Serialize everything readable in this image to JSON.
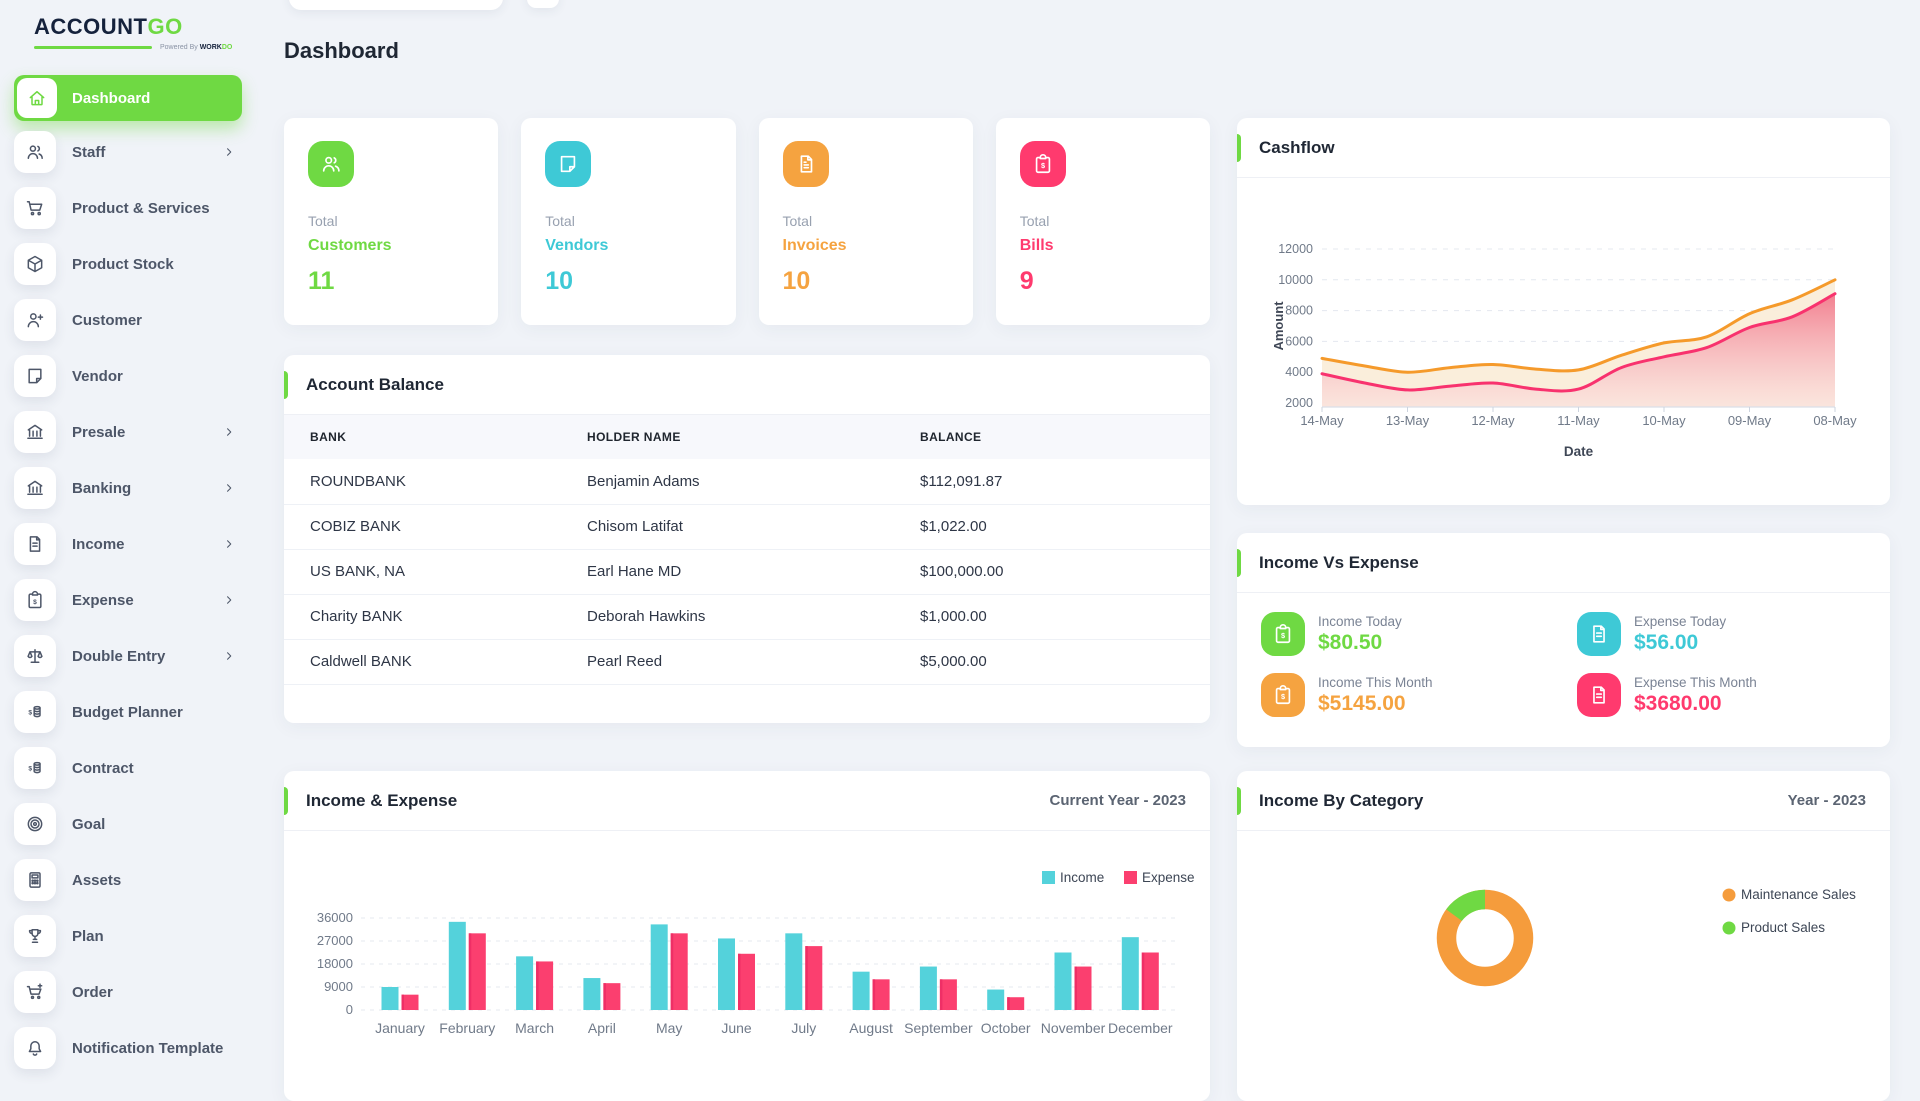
{
  "app": {
    "logo": {
      "primary": "ACCOUNT",
      "accent": "GO",
      "tagline_prefix": "Powered By",
      "tagline_brand": "WORK",
      "tagline_brand_accent": "DO"
    }
  },
  "page": {
    "title": "Dashboard"
  },
  "sidebar": {
    "items": [
      {
        "label": "Dashboard",
        "icon": "home-icon",
        "active": true,
        "has_submenu": false
      },
      {
        "label": "Staff",
        "icon": "users-icon",
        "active": false,
        "has_submenu": true
      },
      {
        "label": "Product & Services",
        "icon": "cart-icon",
        "active": false,
        "has_submenu": false
      },
      {
        "label": "Product Stock",
        "icon": "box-icon",
        "active": false,
        "has_submenu": false
      },
      {
        "label": "Customer",
        "icon": "user-plus-icon",
        "active": false,
        "has_submenu": false
      },
      {
        "label": "Vendor",
        "icon": "note-icon",
        "active": false,
        "has_submenu": false
      },
      {
        "label": "Presale",
        "icon": "bank-icon",
        "active": false,
        "has_submenu": true
      },
      {
        "label": "Banking",
        "icon": "bank-icon",
        "active": false,
        "has_submenu": true
      },
      {
        "label": "Income",
        "icon": "document-icon",
        "active": false,
        "has_submenu": true
      },
      {
        "label": "Expense",
        "icon": "clipboard-dollar-icon",
        "active": false,
        "has_submenu": true
      },
      {
        "label": "Double Entry",
        "icon": "scale-icon",
        "active": false,
        "has_submenu": true
      },
      {
        "label": "Budget Planner",
        "icon": "coins-icon",
        "active": false,
        "has_submenu": false
      },
      {
        "label": "Contract",
        "icon": "coins-icon",
        "active": false,
        "has_submenu": false
      },
      {
        "label": "Goal",
        "icon": "target-icon",
        "active": false,
        "has_submenu": false
      },
      {
        "label": "Assets",
        "icon": "calculator-icon",
        "active": false,
        "has_submenu": false
      },
      {
        "label": "Plan",
        "icon": "trophy-icon",
        "active": false,
        "has_submenu": false
      },
      {
        "label": "Order",
        "icon": "cart-plus-icon",
        "active": false,
        "has_submenu": false
      },
      {
        "label": "Notification Template",
        "icon": "bell-icon",
        "active": false,
        "has_submenu": false
      }
    ]
  },
  "stats": [
    {
      "prefix": "Total",
      "label": "Customers",
      "value": "11",
      "color": "#6fd943",
      "icon": "users-icon"
    },
    {
      "prefix": "Total",
      "label": "Vendors",
      "value": "10",
      "color": "#3ec9d6",
      "icon": "note-icon"
    },
    {
      "prefix": "Total",
      "label": "Invoices",
      "value": "10",
      "color": "#f5a340",
      "icon": "invoice-icon"
    },
    {
      "prefix": "Total",
      "label": "Bills",
      "value": "9",
      "color": "#ff3a6e",
      "icon": "clipboard-dollar-icon"
    }
  ],
  "account_balance": {
    "title": "Account Balance",
    "columns": [
      "BANK",
      "HOLDER NAME",
      "BALANCE"
    ],
    "rows": [
      [
        "ROUNDBANK",
        "Benjamin Adams",
        "$112,091.87"
      ],
      [
        "COBIZ BANK",
        "Chisom Latifat",
        "$1,022.00"
      ],
      [
        "US BANK, NA",
        "Earl Hane MD",
        "$100,000.00"
      ],
      [
        "Charity BANK",
        "Deborah Hawkins",
        "$1,000.00"
      ],
      [
        "Caldwell BANK",
        "Pearl Reed",
        "$5,000.00"
      ]
    ]
  },
  "income_vs_expense": {
    "title": "Income Vs Expense",
    "tiles": [
      {
        "label": "Income Today",
        "value": "$80.50",
        "color": "#6fd943",
        "icon": "clipboard-dollar-icon"
      },
      {
        "label": "Expense Today",
        "value": "$56.00",
        "color": "#3ec9d6",
        "icon": "document-icon"
      },
      {
        "label": "Income This Month",
        "value": "$5145.00",
        "color": "#f5a340",
        "icon": "clipboard-dollar-icon"
      },
      {
        "label": "Expense This Month",
        "value": "$3680.00",
        "color": "#ff3a6e",
        "icon": "document-icon"
      }
    ]
  },
  "chart_data": [
    {
      "id": "cashflow",
      "type": "area",
      "title": "Cashflow",
      "xlabel": "Date",
      "ylabel": "Amount",
      "x_ticks": [
        "14-May",
        "13-May",
        "12-May",
        "11-May",
        "10-May",
        "09-May",
        "08-May"
      ],
      "y_ticks": [
        2000,
        4000,
        6000,
        8000,
        10000,
        12000
      ],
      "ylim": [
        2000,
        12000
      ],
      "grid": "dashed-horizontal",
      "series": [
        {
          "color": "#f59a2b",
          "fill": "#faedd9",
          "values": [
            4900,
            4400,
            4000,
            4300,
            4500,
            4200,
            4150,
            5100,
            5900,
            6300,
            7800,
            8700,
            10000
          ]
        },
        {
          "color": "#f8326e",
          "fill": "gradient-pink",
          "values": [
            3900,
            3300,
            2850,
            3100,
            3300,
            2900,
            2900,
            4300,
            5000,
            5600,
            6900,
            7600,
            9100
          ]
        }
      ]
    },
    {
      "id": "income_expense",
      "type": "bar",
      "title": "Income & Expense",
      "subtitle": "Current Year - 2023",
      "categories": [
        "January",
        "February",
        "March",
        "April",
        "May",
        "June",
        "July",
        "August",
        "September",
        "October",
        "November",
        "December"
      ],
      "y_ticks": [
        0,
        9000,
        18000,
        27000,
        36000
      ],
      "ylim": [
        0,
        36000
      ],
      "grid": "dashed-horizontal",
      "legend_position": "top-right",
      "series": [
        {
          "name": "Income",
          "color": "#54d2db",
          "values": [
            9000,
            34500,
            21000,
            12500,
            33500,
            28000,
            30000,
            15000,
            17000,
            8000,
            22500,
            28500
          ]
        },
        {
          "name": "Expense",
          "color": "#fb3f6f",
          "edge_color": "#ef2f66",
          "values": [
            6000,
            30000,
            19000,
            10500,
            30000,
            22000,
            25000,
            12000,
            12000,
            5000,
            17000,
            22500
          ]
        }
      ]
    },
    {
      "id": "income_by_category",
      "type": "donut",
      "title": "Income By Category",
      "subtitle": "Year - 2023",
      "legend_position": "right",
      "slices": [
        {
          "label": "Maintenance Sales",
          "color": "#f59c3c",
          "pct": 85
        },
        {
          "label": "Product Sales",
          "color": "#6fd943",
          "pct": 15
        }
      ]
    }
  ]
}
